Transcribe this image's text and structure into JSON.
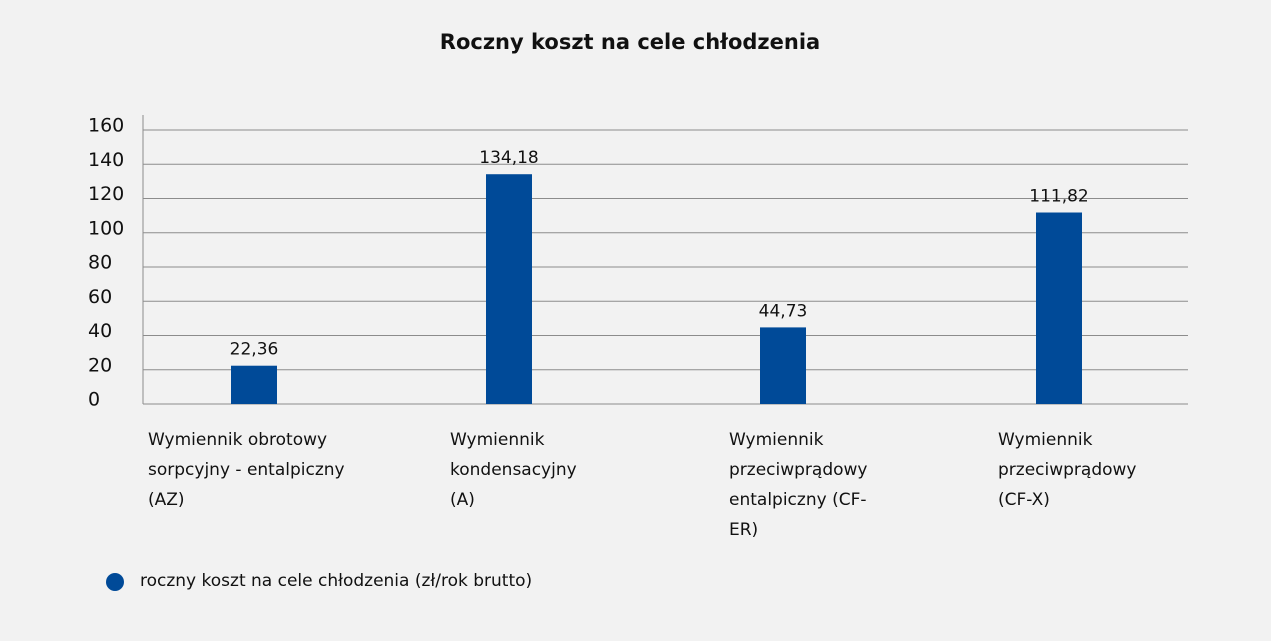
{
  "chart_data": {
    "type": "bar",
    "title": "Roczny koszt na cele chłodzenia",
    "categories": [
      "Wymiennik obrotowy sorpcyjny - entalpiczny (AZ)",
      "Wymiennik kondensacyjny (A)",
      "Wymiennik przeciwprądowy entalpiczny (CF-ER)",
      "Wymiennik przeciwprądowy (CF-X)"
    ],
    "series": [
      {
        "name": "roczny koszt na cele chłodzenia (zł/rok brutto)",
        "color": "#004a98",
        "values": [
          22.36,
          134.18,
          44.73,
          111.82
        ],
        "value_labels": [
          "22,36",
          "134,18",
          "44,73",
          "111,82"
        ]
      }
    ],
    "ylim": [
      0,
      160
    ],
    "yticks": [
      0,
      20,
      40,
      60,
      80,
      100,
      120,
      140,
      160
    ],
    "grid": true,
    "legend": "bottom-left"
  }
}
